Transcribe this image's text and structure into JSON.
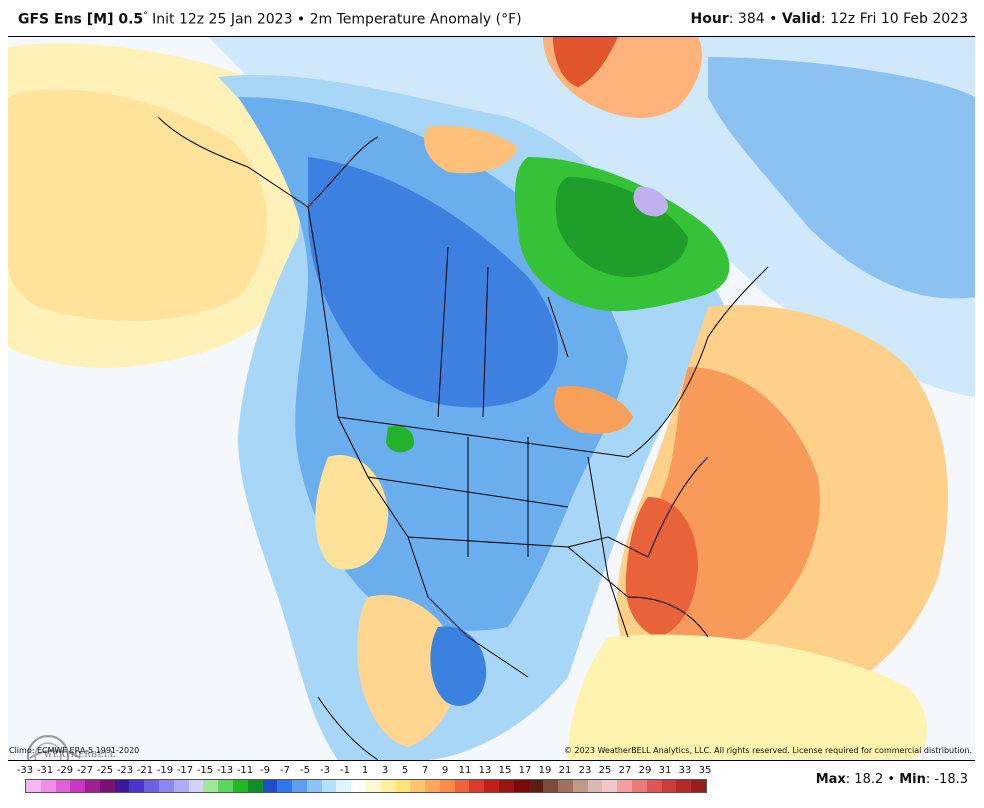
{
  "header": {
    "model": "GFS Ens [M] 0.5",
    "degree": "°",
    "init": " Init 12z 25 Jan 2023 • 2m Temperature Anomaly (°F)",
    "hour_label": "Hour",
    "hour_value": ": 384 • ",
    "valid_label": "Valid",
    "valid_value": ": 12z Fri 10 Feb 2023"
  },
  "footer": {
    "climo": "Climo: ECMWF ERA-5 1991-2020",
    "copyright": "© 2023 WeatherBELL Analytics, LLC. All rights reserved. License required for commercial distribution.",
    "watermark": "WEATHERBELL",
    "max_label": "Max",
    "max_value": ": 18.2 • ",
    "min_label": "Min",
    "min_value": ": -18.3"
  },
  "colorbar": {
    "ticks": [
      "-33",
      "-31",
      "-29",
      "-27",
      "-25",
      "-23",
      "-21",
      "-19",
      "-17",
      "-15",
      "-13",
      "-11",
      "-9",
      "-7",
      "-5",
      "-3",
      "-1",
      "1",
      "3",
      "5",
      "7",
      "9",
      "11",
      "13",
      "15",
      "17",
      "19",
      "21",
      "23",
      "25",
      "27",
      "29",
      "31",
      "33",
      "35"
    ],
    "colors": [
      "#f7b6f2",
      "#ef8fe8",
      "#e060d8",
      "#c838c0",
      "#a02090",
      "#7a1070",
      "#3a1a9a",
      "#4a34c8",
      "#6a60e0",
      "#8c88ee",
      "#b0acf4",
      "#d4d2fa",
      "#9ee89e",
      "#5cd65c",
      "#22b822",
      "#0f8f2a",
      "#1e4fc8",
      "#2f78e8",
      "#5c9ef2",
      "#8cc4f8",
      "#b4e2fa",
      "#dff4fc",
      "#ffffff",
      "#fffad2",
      "#fff0a0",
      "#ffe07a",
      "#ffc870",
      "#ffa85a",
      "#ff8a4a",
      "#f0623a",
      "#dc3a2a",
      "#c0201c",
      "#9a1410",
      "#7a0a0a",
      "#5a1e14",
      "#7a4a3a",
      "#a07060",
      "#c09888",
      "#d8b8b0",
      "#f0c8c8",
      "#f4a0a0",
      "#ec7a7a",
      "#e05656",
      "#cc3a3a",
      "#b42a2a",
      "#9a1e1e"
    ]
  },
  "map_colors": {
    "ocean": "#f5f8fb",
    "warm_pale": "#fff7c4",
    "warm_light": "#ffe59a",
    "warm_mid": "#ffc27a",
    "warm_strong": "#f4894e",
    "warm_hot": "#e2552e",
    "warm_deep": "#b82a1a",
    "cool_pale": "#cfeefb",
    "cool_light": "#a4dcf6",
    "cool_mid": "#6bb2ee",
    "cool_strong": "#3b82e0",
    "cool_deep": "#1e56c4",
    "green_light": "#5dd65d",
    "green_mid": "#22b22c",
    "green_deep": "#138a2c",
    "purple": "#b9a6ee",
    "border": "#000000"
  }
}
